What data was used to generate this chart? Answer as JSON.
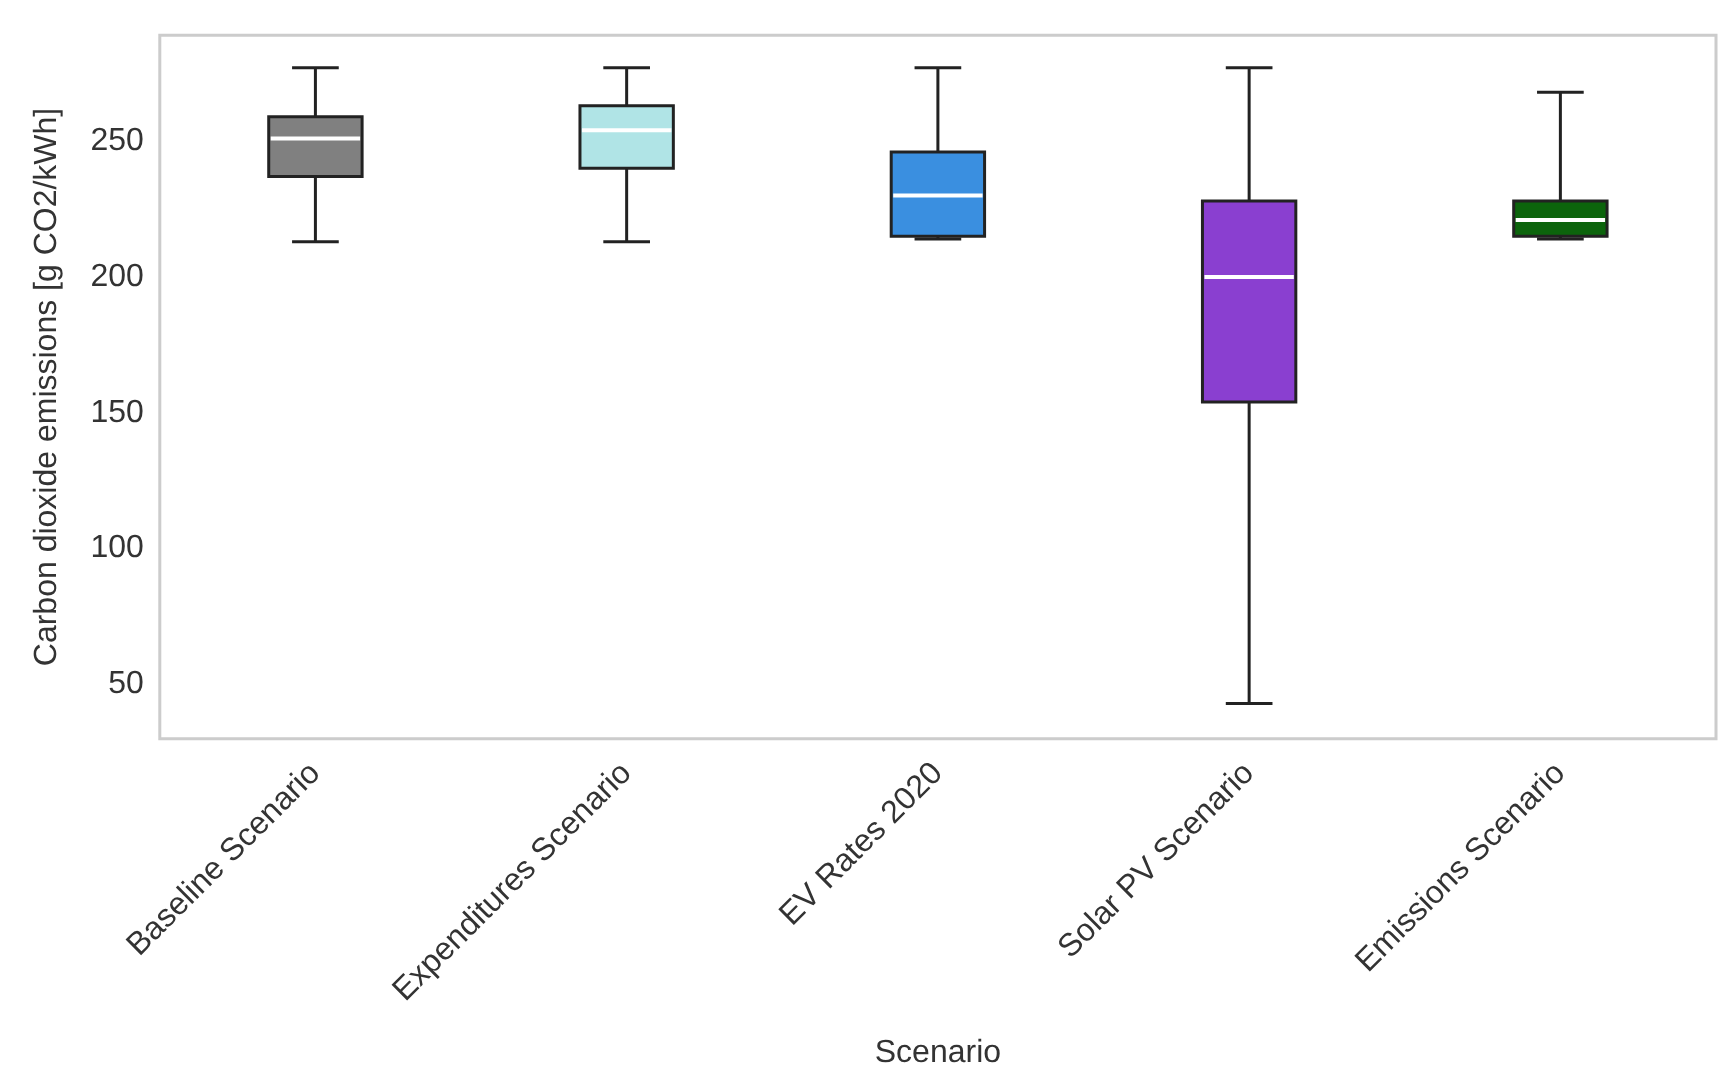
{
  "chart_data": {
    "type": "box",
    "xlabel": "Scenario",
    "ylabel": "Carbon dioxide emissions [g CO2/kWh]",
    "categories": [
      "Baseline Scenario",
      "Expenditures Scenario",
      "EV Rates 2020",
      "Solar PV Scenario",
      "Emissions Scenario"
    ],
    "colors": [
      "#808080",
      "#b0e4e6",
      "#3a8fe0",
      "#8a3fd0",
      "#0c640c"
    ],
    "boxes": [
      {
        "low": 213,
        "q1": 237,
        "median": 251,
        "q3": 259,
        "high": 277
      },
      {
        "low": 213,
        "q1": 240,
        "median": 254,
        "q3": 263,
        "high": 277
      },
      {
        "low": 214,
        "q1": 215,
        "median": 230,
        "q3": 246,
        "high": 277
      },
      {
        "low": 43,
        "q1": 154,
        "median": 200,
        "q3": 228,
        "high": 277
      },
      {
        "low": 214,
        "q1": 215,
        "median": 221,
        "q3": 228,
        "high": 268
      }
    ],
    "ylim": [
      30,
      289
    ],
    "yticks": [
      50,
      100,
      150,
      200,
      250
    ],
    "grid": false,
    "legend": false
  }
}
